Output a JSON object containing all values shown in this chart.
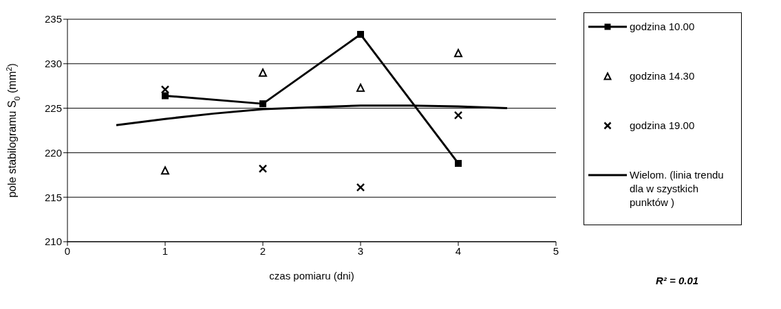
{
  "chart_data": {
    "type": "line",
    "xlabel": "czas pomiaru (dni)",
    "ylabel": "pole stabilogramu S$_{0}$ (mm$^{2}$)",
    "xlim": [
      0,
      5
    ],
    "xticks": [
      0,
      1,
      2,
      3,
      4,
      5
    ],
    "ylim": [
      210,
      235
    ],
    "yticks": [
      210,
      215,
      220,
      225,
      230,
      235
    ],
    "grid": "y",
    "legend": "right",
    "line_style": "solid",
    "series": [
      {
        "name": "godzina 10.00",
        "type": "line",
        "marker": "square",
        "color": "#000000",
        "x": [
          1,
          2,
          3,
          4
        ],
        "values": [
          226.4,
          225.5,
          233.3,
          218.8
        ]
      },
      {
        "name": "godzina 14.30",
        "type": "scatter",
        "marker": "triangle",
        "color": "#000000",
        "x": [
          1,
          2,
          3,
          4
        ],
        "values": [
          218.0,
          229.0,
          227.3,
          231.2
        ]
      },
      {
        "name": "godzina 19.00",
        "type": "scatter",
        "marker": "cross",
        "color": "#000000",
        "x": [
          1,
          2,
          3,
          4
        ],
        "values": [
          227.1,
          218.2,
          216.1,
          224.2
        ]
      },
      {
        "name": "Wielom. (linia trendu dla w szystkich punktów )",
        "type": "line",
        "marker": "none",
        "color": "#000000",
        "x": [
          0.5,
          1,
          1.5,
          2,
          2.5,
          3,
          3.5,
          4,
          4.5
        ],
        "values": [
          223.1,
          223.8,
          224.4,
          224.9,
          225.1,
          225.3,
          225.3,
          225.2,
          225.0
        ]
      }
    ],
    "annotations": [
      "R² = 0.01"
    ]
  }
}
